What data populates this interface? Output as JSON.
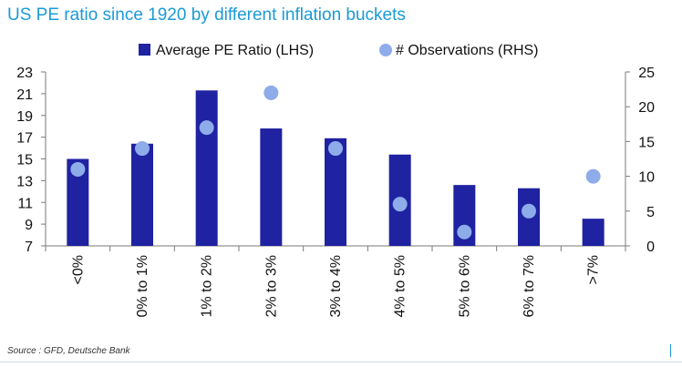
{
  "title": "US PE ratio since 1920 by different inflation buckets",
  "source": "Source : GFD, Deutsche Bank",
  "colors": {
    "bar": "#1f22a1",
    "dot": "#8eacea",
    "title": "#1a9ad6",
    "axis": "#7a7a7a"
  },
  "chart_data": {
    "type": "bar",
    "categories": [
      "<0%",
      "0% to 1%",
      "1% to 2%",
      "2% to 3%",
      "3% to 4%",
      "4% to 5%",
      "5% to 6%",
      "6% to 7%",
      ">7%"
    ],
    "series": [
      {
        "name": "Average PE Ratio (LHS)",
        "type": "bar",
        "axis": "left",
        "values": [
          15.0,
          16.4,
          21.3,
          17.8,
          16.9,
          15.4,
          12.6,
          12.3,
          9.5
        ]
      },
      {
        "name": "# Observations (RHS)",
        "type": "scatter",
        "axis": "right",
        "values": [
          11,
          14,
          17,
          22,
          14,
          6,
          2,
          5,
          10
        ]
      }
    ],
    "left_axis": {
      "min": 7,
      "max": 23,
      "ticks": [
        7,
        9,
        11,
        13,
        15,
        17,
        19,
        21,
        23
      ]
    },
    "right_axis": {
      "min": 0,
      "max": 25,
      "ticks": [
        0,
        5,
        10,
        15,
        20,
        25
      ]
    },
    "legend_position": "top",
    "grid": false
  }
}
